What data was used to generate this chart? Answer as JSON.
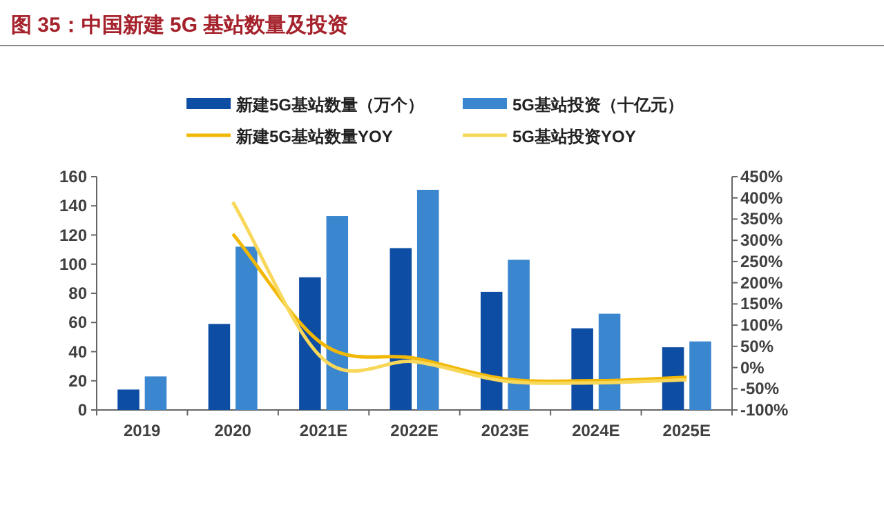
{
  "chart_data": {
    "type": "bar",
    "title": "图 35：中国新建 5G 基站数量及投资",
    "categories": [
      "2019",
      "2020",
      "2021E",
      "2022E",
      "2023E",
      "2024E",
      "2025E"
    ],
    "series": [
      {
        "name": "新建5G基站数量（万个）",
        "color": "#0e4da4",
        "values": [
          14,
          59,
          91,
          111,
          81,
          56,
          43
        ]
      },
      {
        "name": "5G基站投资（十亿元）",
        "color": "#3a87d0",
        "values": [
          23,
          112,
          133,
          151,
          103,
          66,
          47
        ]
      },
      {
        "name": "新建5G基站数量YOY",
        "type": "line",
        "axis": "y2",
        "color": "#f2b807",
        "values": [
          null,
          315,
          54,
          22,
          -27,
          -31,
          -23
        ]
      },
      {
        "name": "5G基站投资YOY",
        "type": "line",
        "axis": "y2",
        "color": "#f8d85a",
        "values": [
          null,
          390,
          19,
          14,
          -32,
          -36,
          -29
        ]
      }
    ],
    "ylim": [
      0,
      160
    ],
    "yticks": [
      0,
      20,
      40,
      60,
      80,
      100,
      120,
      140,
      160
    ],
    "y2lim": [
      -100,
      450
    ],
    "y2ticks": [
      {
        "value": -100,
        "label": "-100%"
      },
      {
        "value": -50,
        "label": "-50%"
      },
      {
        "value": 0,
        "label": "0%"
      },
      {
        "value": 50,
        "label": "50%"
      },
      {
        "value": 100,
        "label": "100%"
      },
      {
        "value": 150,
        "label": "150%"
      },
      {
        "value": 200,
        "label": "200%"
      },
      {
        "value": 250,
        "label": "250%"
      },
      {
        "value": 300,
        "label": "300%"
      },
      {
        "value": 350,
        "label": "350%"
      },
      {
        "value": 400,
        "label": "400%"
      },
      {
        "value": 450,
        "label": "450%"
      }
    ],
    "legend": "top",
    "marker": "none",
    "line_style": "solid"
  }
}
